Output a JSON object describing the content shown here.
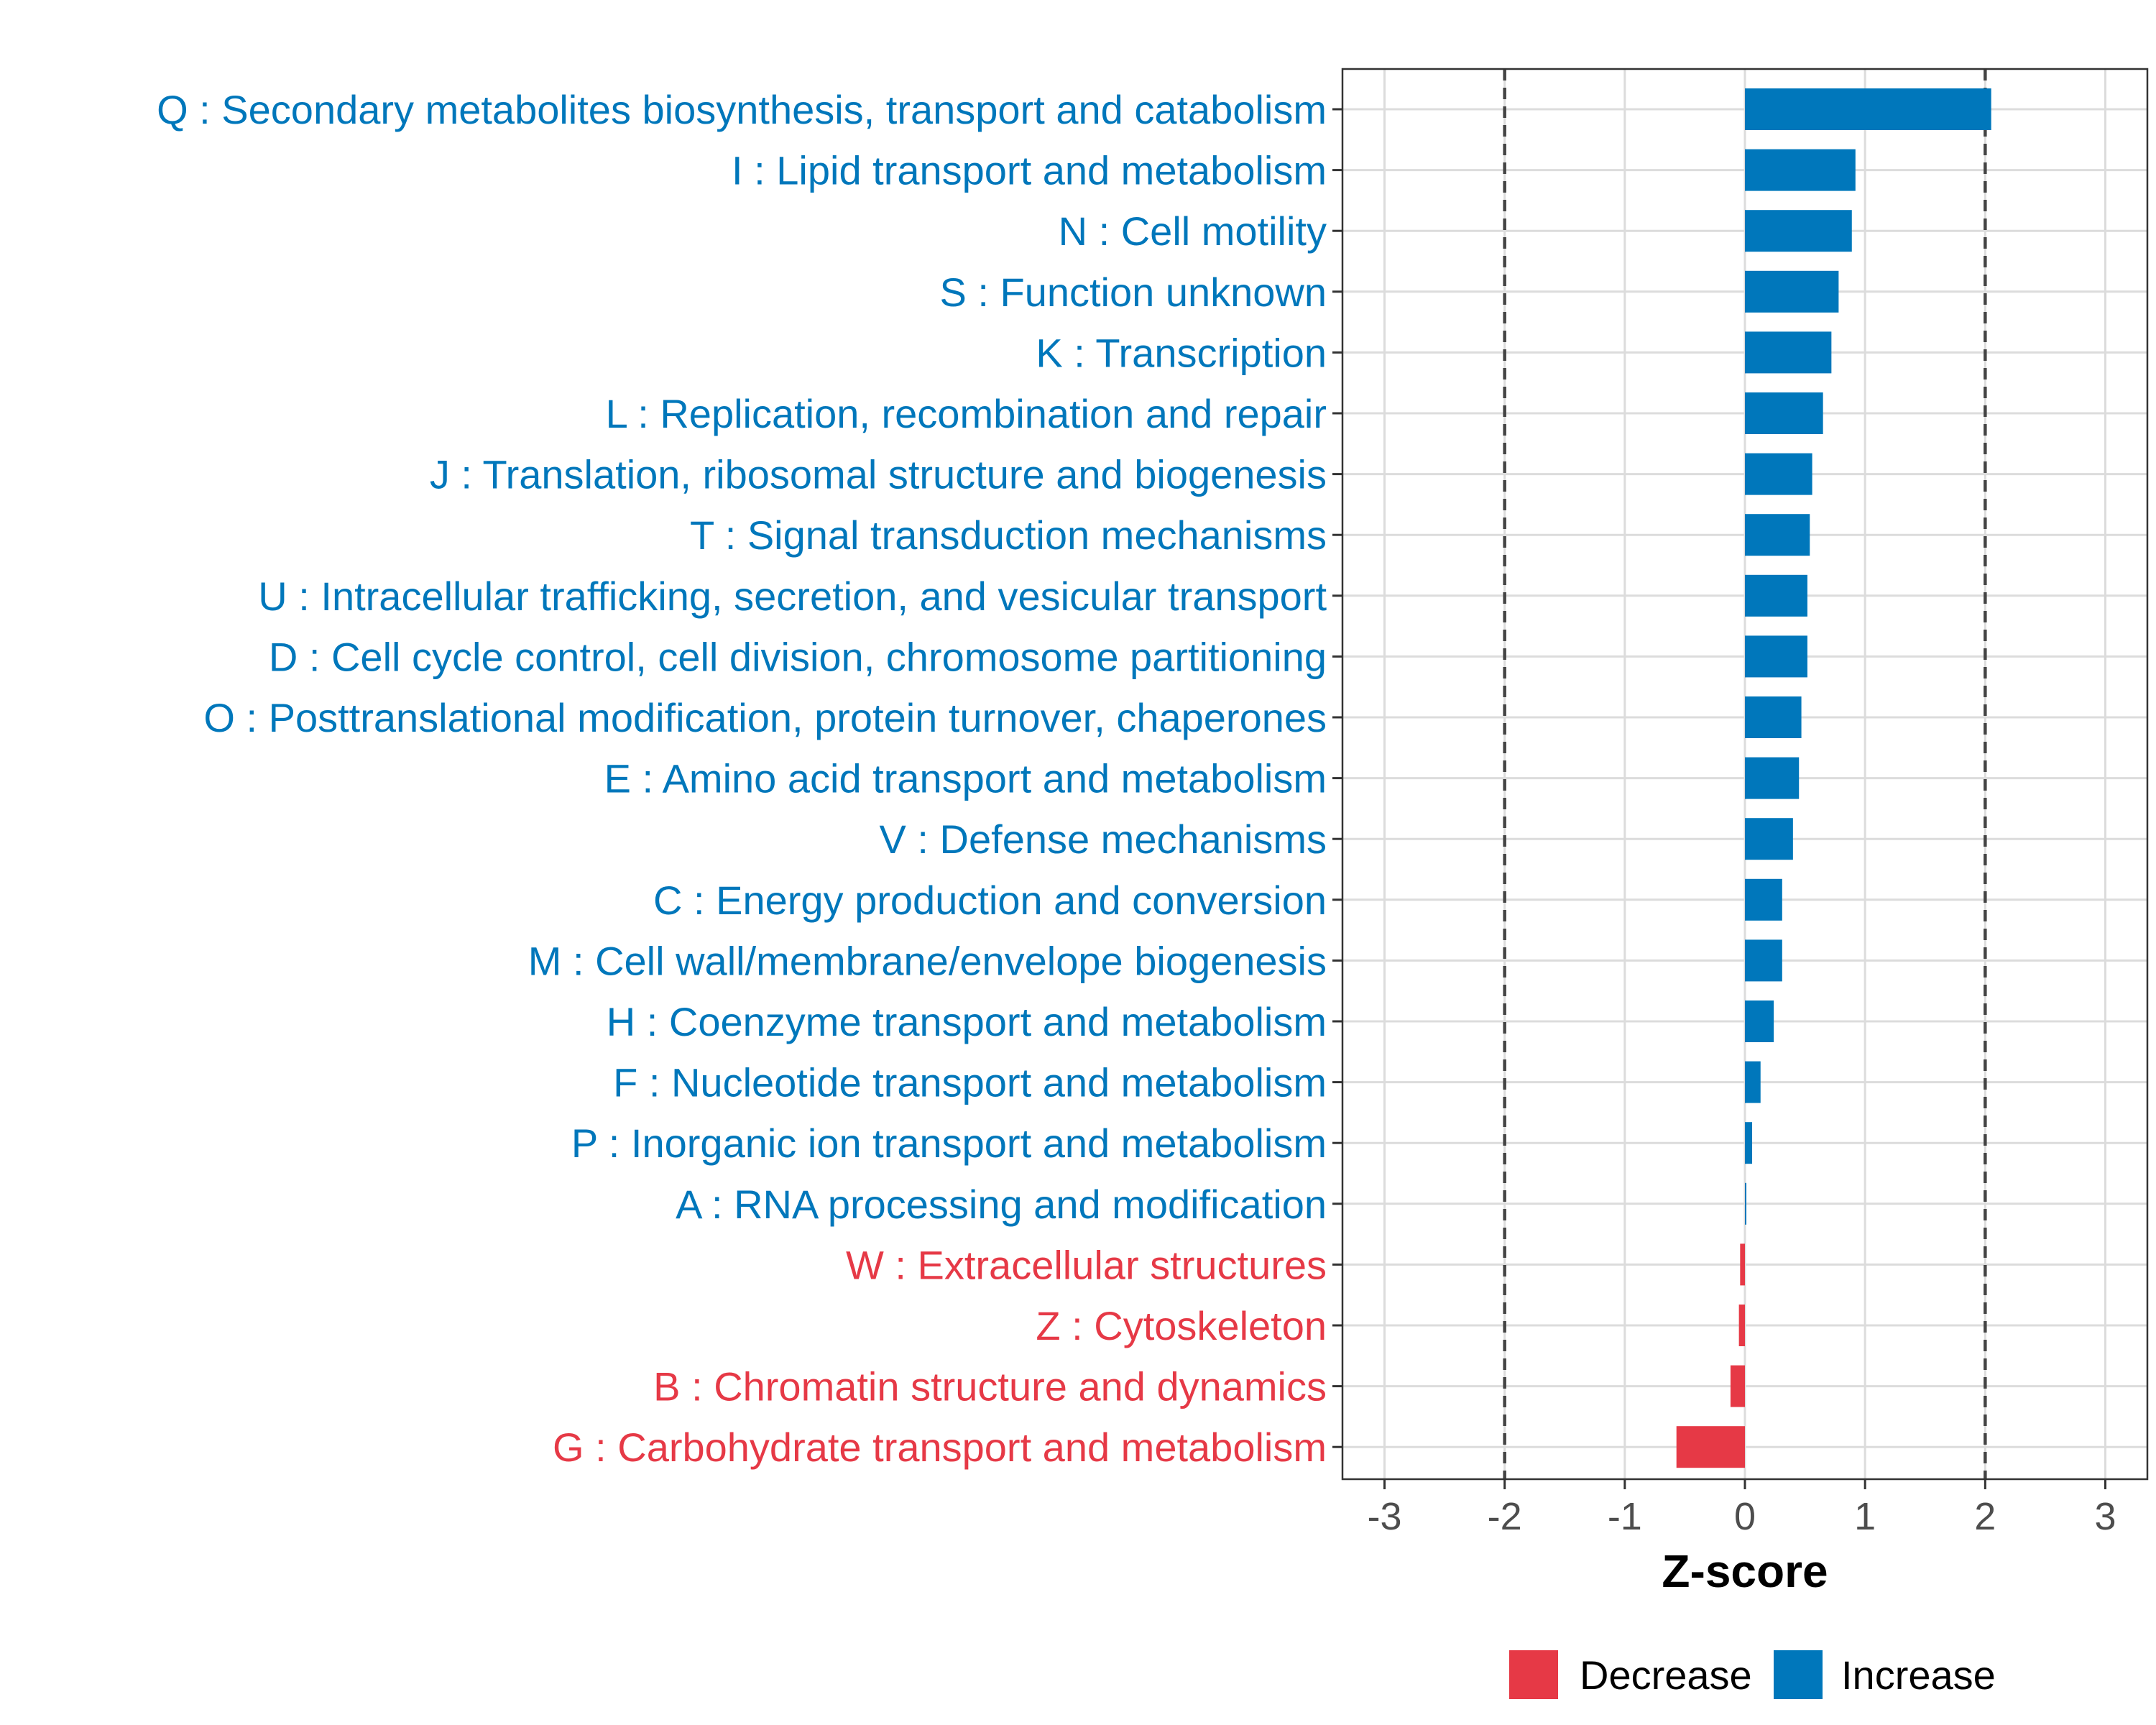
{
  "colors": {
    "increase": "#0077BB",
    "decrease": "#E63946",
    "grid": "#DCDCDC",
    "panel_border": "#333333",
    "threshold": "#444444",
    "tick_text": "#4D4D4D"
  },
  "chart_data": {
    "type": "bar",
    "orientation": "horizontal",
    "title": "",
    "xlabel": "Z-score",
    "ylabel": "",
    "xlim": [
      -3.35,
      3.35
    ],
    "xticks": [
      "-3",
      "-2",
      "-1",
      "0",
      "1",
      "2",
      "3"
    ],
    "xtick_values": [
      -3,
      -2,
      -1,
      0,
      1,
      2,
      3
    ],
    "threshold_lines": [
      -2,
      2
    ],
    "grid": true,
    "legend_position": "bottom",
    "legend": [
      {
        "key": "decrease",
        "label": "Decrease"
      },
      {
        "key": "increase",
        "label": "Increase"
      }
    ],
    "categories": [
      "Q : Secondary metabolites biosynthesis, transport and catabolism",
      "I : Lipid transport and metabolism",
      "N : Cell motility",
      "S : Function unknown",
      "K : Transcription",
      "L : Replication, recombination and repair",
      "J : Translation, ribosomal structure and biogenesis",
      "T : Signal transduction mechanisms",
      "U : Intracellular trafficking, secretion, and vesicular transport",
      "D : Cell cycle control, cell division, chromosome partitioning",
      "O : Posttranslational modification, protein turnover, chaperones",
      "E : Amino acid transport and metabolism",
      "V : Defense mechanisms",
      "C : Energy production and conversion",
      "M : Cell wall/membrane/envelope biogenesis",
      "H : Coenzyme transport and metabolism",
      "F : Nucleotide transport and metabolism",
      "P : Inorganic ion transport and metabolism",
      "A : RNA processing and modification",
      "W : Extracellular structures",
      "Z : Cytoskeleton",
      "B : Chromatin structure and dynamics",
      "G : Carbohydrate transport and metabolism"
    ],
    "values": [
      2.05,
      0.92,
      0.89,
      0.78,
      0.72,
      0.65,
      0.56,
      0.54,
      0.52,
      0.52,
      0.47,
      0.45,
      0.4,
      0.31,
      0.31,
      0.24,
      0.13,
      0.06,
      0.01,
      -0.04,
      -0.05,
      -0.12,
      -0.57
    ]
  }
}
